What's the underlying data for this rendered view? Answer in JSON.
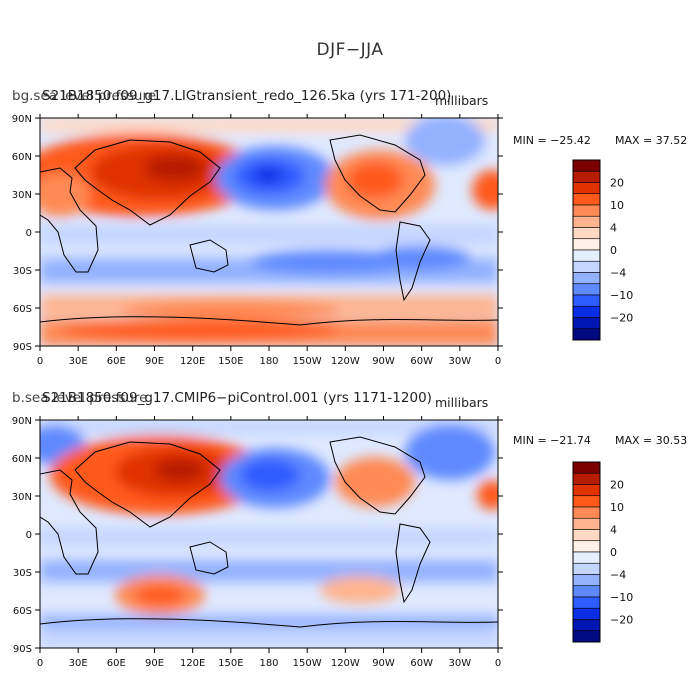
{
  "title": "DJF−JJA",
  "panels": [
    {
      "case_label": "S21B1850.f09_g17.LIGtransient_redo_126.5ka (yrs 171-200)",
      "variable_label": "bg.sea level pressure",
      "units": "millibars",
      "min_label": "MIN = −25.42",
      "max_label": "MAX =  37.52"
    },
    {
      "case_label": "S21B1850.f09_g17.CMIP6−piControl.001 (yrs 1171-1200)",
      "variable_label": "b.sea level pressure",
      "units": "millibars",
      "min_label": "MIN = −21.74",
      "max_label": "MAX =  30.53"
    }
  ],
  "lon_labels": [
    "0",
    "30E",
    "60E",
    "90E",
    "120E",
    "150E",
    "180",
    "150W",
    "120W",
    "90W",
    "60W",
    "30W",
    "0"
  ],
  "lat_labels": [
    "90N",
    "60N",
    "30N",
    "0",
    "30S",
    "60S",
    "90S"
  ],
  "colorbar": {
    "labels": [
      "20",
      "10",
      "4",
      "0",
      "−4",
      "−10",
      "−20"
    ],
    "colors": [
      "#7a0000",
      "#b71c00",
      "#e03300",
      "#ff5a1a",
      "#ff8a55",
      "#ffb48f",
      "#ffd9c4",
      "#fff1e6",
      "#e6efff",
      "#c4d6ff",
      "#93b1ff",
      "#5f8aff",
      "#2d5cff",
      "#0a2ee6",
      "#0016b3",
      "#000a80"
    ]
  }
}
